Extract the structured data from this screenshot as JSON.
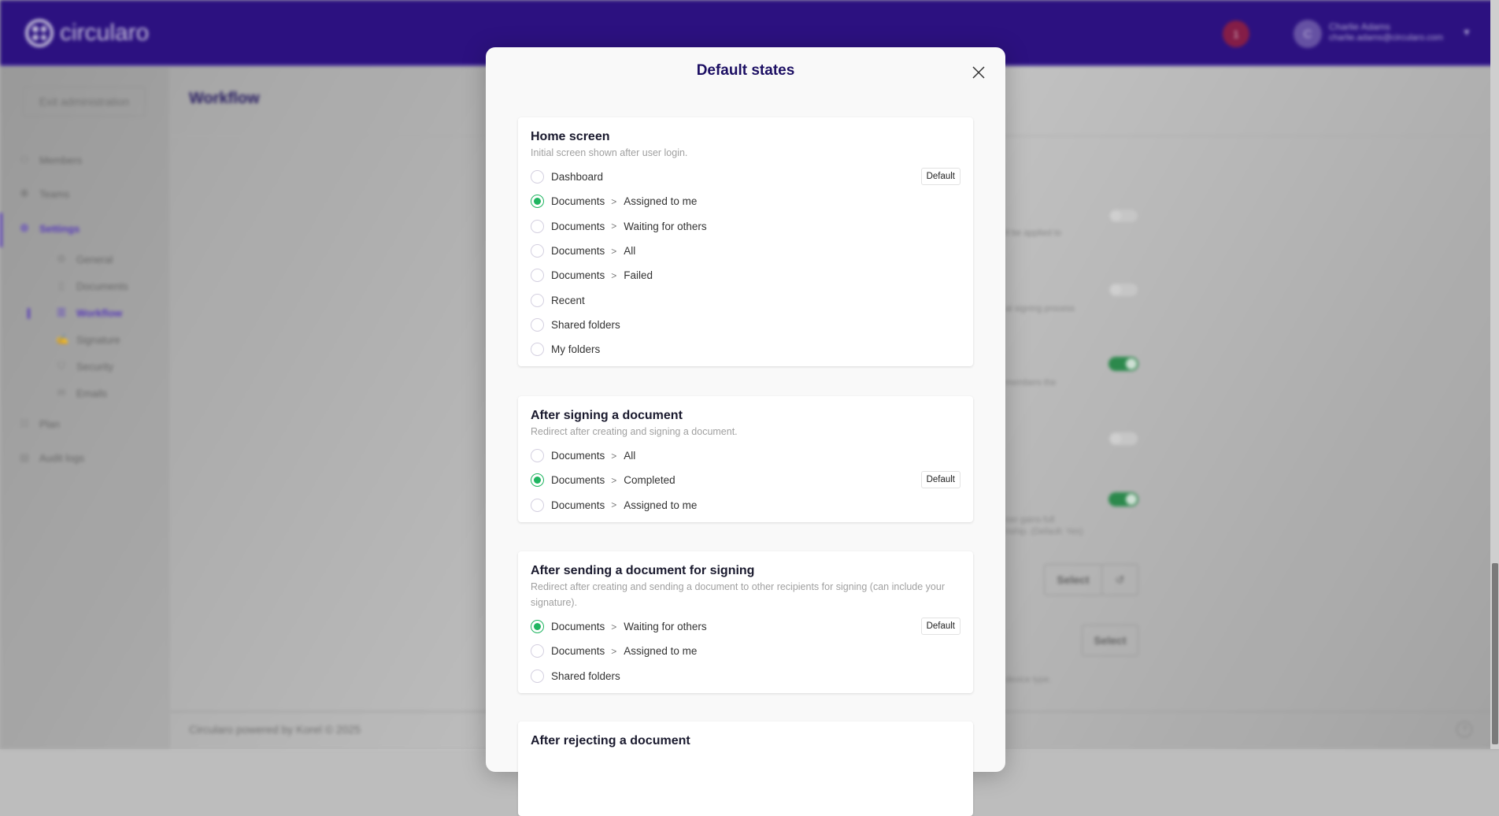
{
  "header": {
    "brand": "circularo",
    "notifications": "1",
    "user": {
      "initial": "C",
      "name": "Charlie Adams",
      "email": "charlie.adams@circularo.com"
    }
  },
  "sidebar": {
    "exit": "Exit administration",
    "items": [
      {
        "label": "Members",
        "icon": "user-icon"
      },
      {
        "label": "Teams",
        "icon": "users-icon"
      },
      {
        "label": "Settings",
        "icon": "gear-icon",
        "active": true
      },
      {
        "label": "General",
        "icon": "gear-icon",
        "sub": true
      },
      {
        "label": "Documents",
        "icon": "file-icon",
        "sub": true
      },
      {
        "label": "Workflow",
        "icon": "list-icon",
        "sub": true,
        "active": true
      },
      {
        "label": "Signature",
        "icon": "signature-icon",
        "sub": true
      },
      {
        "label": "Security",
        "icon": "shield-icon",
        "sub": true
      },
      {
        "label": "Emails",
        "icon": "mail-icon",
        "sub": true
      },
      {
        "label": "Plan",
        "icon": "plan-icon"
      },
      {
        "label": "Audit logs",
        "icon": "log-icon"
      }
    ]
  },
  "page": {
    "title": "Workflow",
    "fragments": [
      "ll be applied to",
      "al signing process",
      "members the",
      "ner gains full",
      "nship. (Default: Yes)",
      "device type."
    ],
    "toggles": [
      false,
      false,
      true,
      false,
      true
    ],
    "select_label": "Select"
  },
  "footer": {
    "text": "Circularo powered by Korel © 2025"
  },
  "modal": {
    "title": "Default states",
    "default_label": "Default",
    "accent": "#1fb560",
    "sections": [
      {
        "title": "Home screen",
        "description": "Initial screen shown after user login.",
        "options": [
          {
            "parts": [
              "Dashboard"
            ],
            "selected": false,
            "default": true
          },
          {
            "parts": [
              "Documents",
              "Assigned to me"
            ],
            "selected": true
          },
          {
            "parts": [
              "Documents",
              "Waiting for others"
            ],
            "selected": false
          },
          {
            "parts": [
              "Documents",
              "All"
            ],
            "selected": false
          },
          {
            "parts": [
              "Documents",
              "Failed"
            ],
            "selected": false
          },
          {
            "parts": [
              "Recent"
            ],
            "selected": false
          },
          {
            "parts": [
              "Shared folders"
            ],
            "selected": false
          },
          {
            "parts": [
              "My folders"
            ],
            "selected": false
          }
        ]
      },
      {
        "title": "After signing a document",
        "description": "Redirect after creating and signing a document.",
        "options": [
          {
            "parts": [
              "Documents",
              "All"
            ],
            "selected": false
          },
          {
            "parts": [
              "Documents",
              "Completed"
            ],
            "selected": true,
            "default": true
          },
          {
            "parts": [
              "Documents",
              "Assigned to me"
            ],
            "selected": false
          }
        ]
      },
      {
        "title": "After sending a document for signing",
        "description": "Redirect after creating and sending a document to other recipients for signing (can include your signature).",
        "options": [
          {
            "parts": [
              "Documents",
              "Waiting for others"
            ],
            "selected": true,
            "default": true
          },
          {
            "parts": [
              "Documents",
              "Assigned to me"
            ],
            "selected": false
          },
          {
            "parts": [
              "Shared folders"
            ],
            "selected": false
          }
        ]
      },
      {
        "title": "After rejecting a document",
        "description": "",
        "options": []
      }
    ]
  }
}
